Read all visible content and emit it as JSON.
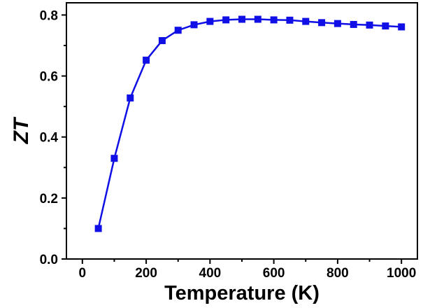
{
  "chart_data": {
    "type": "line",
    "xlabel": "Temperature (K)",
    "ylabel": "ZT",
    "xlim": [
      -50,
      1050
    ],
    "ylim": [
      0,
      0.84
    ],
    "x_ticks": [
      0,
      200,
      400,
      600,
      800,
      1000
    ],
    "y_ticks": [
      0.0,
      0.2,
      0.4,
      0.6,
      0.8
    ],
    "x_tick_labels": [
      "0",
      "200",
      "400",
      "600",
      "800",
      "1000"
    ],
    "y_tick_labels": [
      "0.0",
      "0.2",
      "0.4",
      "0.6",
      "0.8"
    ],
    "grid": false,
    "legend": false,
    "series": [
      {
        "color": "#1010e6",
        "marker": "square",
        "x": [
          50,
          100,
          150,
          200,
          250,
          300,
          350,
          400,
          450,
          500,
          550,
          600,
          650,
          700,
          750,
          800,
          850,
          900,
          950,
          1000
        ],
        "y": [
          0.1,
          0.33,
          0.528,
          0.652,
          0.716,
          0.75,
          0.768,
          0.779,
          0.784,
          0.786,
          0.786,
          0.784,
          0.783,
          0.779,
          0.775,
          0.772,
          0.769,
          0.767,
          0.764,
          0.761
        ]
      }
    ]
  }
}
